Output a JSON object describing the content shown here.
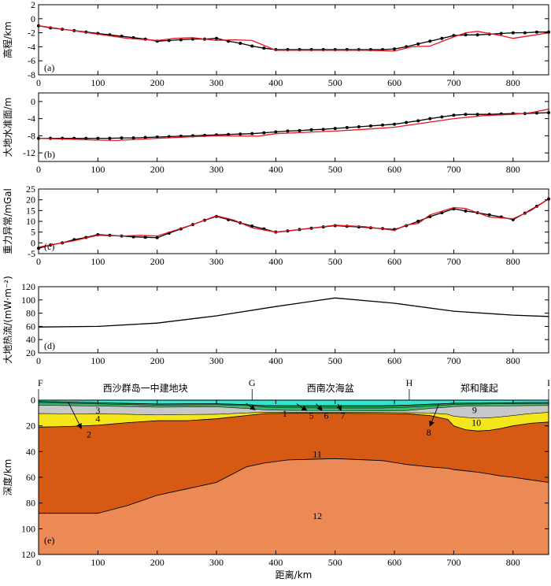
{
  "colors": {
    "observed": "#000000",
    "model": "#e8141e",
    "layer_water": "#2ee6cf",
    "layer_sed1": "#16a24f",
    "layer_sed_grey": "#c8c8c8",
    "layer_sed_yellow": "#f5e61c",
    "layer_crust": "#d65a14",
    "layer_mantle": "#ec8a56"
  },
  "chart_data": [
    {
      "id": "a",
      "type": "line",
      "panel_label": "(a)",
      "ylabel": "高程/km",
      "xlim": [
        0,
        860
      ],
      "ylim": [
        -8,
        2
      ],
      "yticks": [
        2,
        0,
        -2,
        -4,
        -6,
        -8
      ],
      "xticks": [
        0,
        100,
        200,
        300,
        400,
        500,
        600,
        700,
        800
      ],
      "series": [
        {
          "name": "observed",
          "markers": true,
          "x": [
            0,
            20,
            40,
            60,
            80,
            100,
            120,
            140,
            160,
            180,
            200,
            220,
            240,
            260,
            280,
            300,
            320,
            340,
            360,
            380,
            400,
            420,
            440,
            460,
            480,
            500,
            520,
            540,
            560,
            580,
            600,
            620,
            640,
            660,
            680,
            700,
            720,
            740,
            760,
            780,
            800,
            820,
            840,
            860
          ],
          "y": [
            -1.0,
            -1.3,
            -1.5,
            -1.7,
            -1.9,
            -2.1,
            -2.3,
            -2.5,
            -2.7,
            -2.9,
            -3.2,
            -3.1,
            -3.0,
            -2.9,
            -2.9,
            -2.8,
            -3.2,
            -3.5,
            -3.9,
            -4.2,
            -4.4,
            -4.4,
            -4.4,
            -4.4,
            -4.4,
            -4.4,
            -4.4,
            -4.4,
            -4.4,
            -4.4,
            -4.3,
            -4.0,
            -3.6,
            -3.2,
            -2.8,
            -2.4,
            -2.3,
            -2.3,
            -2.2,
            -2.1,
            -2.0,
            -2.0,
            -1.9,
            -1.9
          ]
        },
        {
          "name": "model",
          "markers": false,
          "x": [
            0,
            50,
            100,
            150,
            200,
            230,
            260,
            300,
            330,
            360,
            380,
            400,
            450,
            500,
            550,
            600,
            630,
            660,
            700,
            720,
            740,
            760,
            780,
            800,
            830,
            860
          ],
          "y": [
            -1.0,
            -1.6,
            -2.2,
            -2.8,
            -3.1,
            -2.8,
            -2.7,
            -3.1,
            -3.0,
            -3.1,
            -3.8,
            -4.5,
            -4.5,
            -4.5,
            -4.5,
            -4.6,
            -4.0,
            -3.9,
            -2.6,
            -2.0,
            -1.8,
            -2.1,
            -2.4,
            -2.8,
            -2.4,
            -2.0
          ]
        }
      ]
    },
    {
      "id": "b",
      "type": "line",
      "panel_label": "(b)",
      "ylabel": "大地水准面/m",
      "xlim": [
        0,
        860
      ],
      "ylim": [
        -14,
        2
      ],
      "yticks": [
        0,
        -4,
        -8,
        -12
      ],
      "xticks": [
        0,
        100,
        200,
        300,
        400,
        500,
        600,
        700,
        800
      ],
      "series": [
        {
          "name": "observed",
          "markers": true,
          "x": [
            0,
            20,
            40,
            60,
            80,
            100,
            120,
            140,
            160,
            180,
            200,
            220,
            240,
            260,
            280,
            300,
            320,
            340,
            360,
            380,
            400,
            420,
            440,
            460,
            480,
            500,
            520,
            540,
            560,
            580,
            600,
            620,
            640,
            660,
            680,
            700,
            720,
            740,
            760,
            780,
            800,
            820,
            840,
            860
          ],
          "y": [
            -8.6,
            -8.6,
            -8.6,
            -8.6,
            -8.6,
            -8.6,
            -8.6,
            -8.5,
            -8.5,
            -8.4,
            -8.3,
            -8.2,
            -8.1,
            -8.0,
            -7.9,
            -7.8,
            -7.7,
            -7.6,
            -7.5,
            -7.3,
            -7.1,
            -6.9,
            -6.8,
            -6.6,
            -6.5,
            -6.3,
            -6.1,
            -5.9,
            -5.7,
            -5.5,
            -5.3,
            -4.9,
            -4.5,
            -4.0,
            -3.6,
            -3.2,
            -3.0,
            -3.0,
            -3.0,
            -2.9,
            -2.8,
            -2.8,
            -2.7,
            -2.6
          ]
        },
        {
          "name": "model",
          "markers": false,
          "x": [
            0,
            50,
            100,
            130,
            200,
            250,
            300,
            370,
            400,
            450,
            500,
            550,
            600,
            650,
            700,
            750,
            800,
            830,
            860
          ],
          "y": [
            -8.6,
            -8.8,
            -9.0,
            -9.1,
            -8.6,
            -8.3,
            -8.0,
            -8.1,
            -7.5,
            -7.2,
            -6.9,
            -6.5,
            -6.0,
            -5.0,
            -4.0,
            -3.3,
            -3.0,
            -2.6,
            -1.8
          ]
        }
      ]
    },
    {
      "id": "c",
      "type": "line",
      "panel_label": "(c)",
      "ylabel": "重力异常/mGal",
      "xlim": [
        0,
        860
      ],
      "ylim": [
        -5,
        25
      ],
      "yticks": [
        25,
        20,
        15,
        10,
        5,
        0,
        -5
      ],
      "xticks": [
        0,
        100,
        200,
        300,
        400,
        500,
        600,
        700,
        800
      ],
      "series": [
        {
          "name": "observed",
          "markers": true,
          "x": [
            0,
            20,
            40,
            60,
            80,
            100,
            120,
            140,
            160,
            180,
            200,
            220,
            240,
            260,
            280,
            300,
            320,
            340,
            360,
            380,
            400,
            420,
            440,
            460,
            480,
            500,
            520,
            540,
            560,
            580,
            600,
            620,
            640,
            660,
            680,
            700,
            720,
            740,
            760,
            780,
            800,
            820,
            840,
            860
          ],
          "y": [
            -2.5,
            -1.0,
            0.0,
            1.5,
            2.5,
            3.8,
            3.5,
            3.2,
            2.8,
            2.6,
            2.4,
            4.5,
            6.5,
            8.5,
            10.5,
            12.3,
            10.8,
            9.3,
            7.8,
            6.5,
            5.0,
            5.5,
            6.2,
            6.8,
            7.4,
            8.0,
            7.7,
            7.4,
            7.0,
            6.6,
            6.2,
            8.0,
            10.0,
            12.2,
            14.0,
            15.8,
            14.8,
            14.0,
            13.0,
            12.0,
            10.8,
            13.8,
            17.0,
            20.4
          ]
        },
        {
          "name": "model",
          "markers": false,
          "x": [
            0,
            30,
            60,
            100,
            140,
            170,
            200,
            230,
            260,
            300,
            330,
            360,
            400,
            450,
            500,
            550,
            600,
            620,
            640,
            660,
            700,
            720,
            760,
            800,
            830,
            860
          ],
          "y": [
            -2.0,
            -0.5,
            1.0,
            3.5,
            3.2,
            3.5,
            3.2,
            5.8,
            8.5,
            12.6,
            10.5,
            7.0,
            5.0,
            6.5,
            8.2,
            7.5,
            5.8,
            8.3,
            9.0,
            13.0,
            16.4,
            16.0,
            12.0,
            11.2,
            15.0,
            20.4
          ]
        }
      ]
    },
    {
      "id": "d",
      "type": "line",
      "panel_label": "(d)",
      "ylabel": "大地热流/(mW·m⁻²)",
      "xlim": [
        0,
        860
      ],
      "ylim": [
        20,
        120
      ],
      "yticks": [
        120,
        100,
        80,
        60,
        40,
        20
      ],
      "xticks": [
        0,
        100,
        200,
        300,
        400,
        500,
        600,
        700,
        800
      ],
      "series": [
        {
          "name": "heat_flow",
          "markers": false,
          "x": [
            0,
            100,
            200,
            300,
            400,
            500,
            600,
            700,
            800,
            860
          ],
          "y": [
            59,
            60,
            65,
            76,
            90,
            103,
            95,
            83,
            77,
            75
          ]
        }
      ]
    },
    {
      "id": "e",
      "type": "area",
      "panel_label": "(e)",
      "ylabel": "深度/km",
      "xlabel": "距离/km",
      "xlim": [
        0,
        860
      ],
      "ylim": [
        120,
        0
      ],
      "yticks": [
        0,
        20,
        40,
        60,
        80,
        100,
        120
      ],
      "xticks": [
        0,
        100,
        200,
        300,
        400,
        500,
        600,
        700,
        800
      ],
      "profile_points": [
        {
          "label": "F",
          "x": 0
        },
        {
          "label": "G",
          "x": 360
        },
        {
          "label": "H",
          "x": 625
        },
        {
          "label": "I",
          "x": 860
        }
      ],
      "regions": [
        {
          "label": "西沙群岛一中建地块",
          "x": 180
        },
        {
          "label": "西南次海盆",
          "x": 492
        },
        {
          "label": "郑和隆起",
          "x": 743
        }
      ],
      "boundaries": {
        "x": [
          0,
          50,
          100,
          150,
          200,
          250,
          300,
          350,
          380,
          420,
          500,
          580,
          620,
          660,
          690,
          700,
          720,
          740,
          760,
          780,
          800,
          830,
          860
        ],
        "seafloor": [
          1.0,
          1.5,
          2.0,
          2.6,
          3.0,
          2.9,
          2.8,
          3.5,
          4.3,
          4.4,
          4.4,
          4.4,
          4.0,
          3.2,
          2.7,
          2.4,
          2.3,
          2.3,
          2.2,
          2.1,
          2.0,
          1.9,
          1.9
        ],
        "sed1_base": [
          2.0,
          2.5,
          3.0,
          3.5,
          4.0,
          3.8,
          3.6,
          4.2,
          5.5,
          6.0,
          6.2,
          6.2,
          5.6,
          4.6,
          3.8,
          3.4,
          3.2,
          3.1,
          3.0,
          2.9,
          2.8,
          2.7,
          2.6
        ],
        "sed2_base": [
          4.0,
          4.3,
          4.6,
          5.0,
          5.5,
          5.3,
          5.2,
          6.5,
          7.5,
          8.0,
          8.2,
          8.3,
          8.2,
          6.5,
          5.5,
          5.0,
          4.8,
          4.6,
          4.5,
          4.5,
          4.4,
          4.3,
          4.2
        ],
        "sed3_base": [
          10.5,
          10.6,
          10.7,
          11.0,
          11.5,
          11.2,
          11.0,
          10.0,
          9.5,
          9.5,
          9.5,
          9.6,
          9.8,
          10.0,
          11.0,
          12.5,
          13.5,
          14.0,
          13.8,
          13.0,
          12.0,
          10.5,
          9.5
        ],
        "sed4_base": [
          21.0,
          20.5,
          19.5,
          17.5,
          16.0,
          16.0,
          14.5,
          12.0,
          10.5,
          10.2,
          10.2,
          10.4,
          10.6,
          12.0,
          15.0,
          20.0,
          23.0,
          24.0,
          23.5,
          22.0,
          20.0,
          18.0,
          17.0
        ],
        "moho": [
          88.0,
          88.0,
          88.0,
          82.0,
          74.0,
          69.0,
          64.0,
          52.0,
          49.0,
          46.5,
          45.5,
          47.0,
          50.0,
          52.0,
          53.0,
          54.0,
          55.0,
          56.0,
          57.5,
          59.0,
          60.0,
          62.0,
          64.0
        ]
      },
      "layer_labels": [
        {
          "text": "1",
          "x": 415,
          "y": 10.5
        },
        {
          "text": "2",
          "x": 85,
          "y": 26.5
        },
        {
          "text": "3",
          "x": 100,
          "y": 8
        },
        {
          "text": "4",
          "x": 100,
          "y": 14.5
        },
        {
          "text": "5",
          "x": 460,
          "y": 12
        },
        {
          "text": "6",
          "x": 485,
          "y": 12
        },
        {
          "text": "7",
          "x": 513,
          "y": 12
        },
        {
          "text": "8",
          "x": 658,
          "y": 25
        },
        {
          "text": "9",
          "x": 735,
          "y": 7.5
        },
        {
          "text": "10",
          "x": 738,
          "y": 17.5
        },
        {
          "text": "11",
          "x": 470,
          "y": 42
        },
        {
          "text": "12",
          "x": 470,
          "y": 90
        }
      ],
      "arrows": [
        {
          "label": "1",
          "from": [
            350,
            2.5
          ],
          "to": [
            365,
            7.5
          ]
        },
        {
          "label": "2",
          "from": [
            50,
            1.5
          ],
          "to": [
            72,
            22
          ]
        },
        {
          "label": "5",
          "from": [
            435,
            2.8
          ],
          "to": [
            452,
            8
          ]
        },
        {
          "label": "6",
          "from": [
            468,
            2.8
          ],
          "to": [
            478,
            8
          ]
        },
        {
          "label": "7",
          "from": [
            505,
            3.0
          ],
          "to": [
            510,
            8
          ]
        },
        {
          "label": "8",
          "from": [
            675,
            3.0
          ],
          "to": [
            660,
            20
          ]
        }
      ]
    }
  ]
}
